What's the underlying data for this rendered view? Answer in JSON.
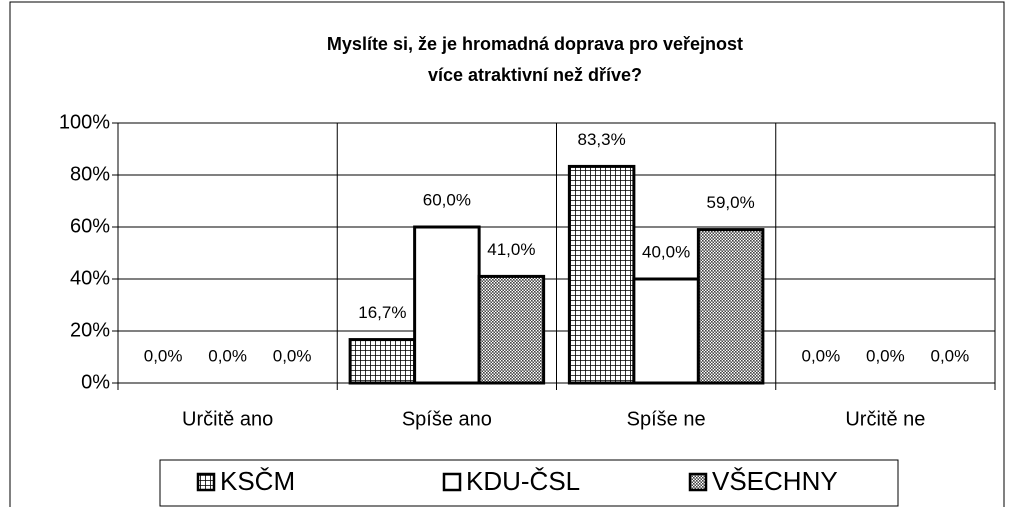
{
  "chart_data": {
    "type": "bar",
    "title": [
      "Myslíte si, že je hromadná doprava pro veřejnost",
      "více atraktivní než dříve?"
    ],
    "categories": [
      "Určitě ano",
      "Spíše ano",
      "Spíše ne",
      "Určitě ne"
    ],
    "series": [
      {
        "name": "KSČM",
        "color": "#ffffff",
        "pattern": "grid",
        "values": [
          0,
          16.7,
          83.3,
          0
        ],
        "value_labels": [
          "0,0%",
          "16,7%",
          "83,3%",
          "0,0%"
        ]
      },
      {
        "name": "KDU-ČSL",
        "color": "#ffffff",
        "pattern": "none",
        "values": [
          0,
          60,
          40,
          0
        ],
        "value_labels": [
          "0,0%",
          "60,0%",
          "40,0%",
          "0,0%"
        ]
      },
      {
        "name": "VŠECHNY",
        "color": "#ffffff",
        "pattern": "dots",
        "values": [
          0,
          41,
          59,
          0
        ],
        "value_labels": [
          "0,0%",
          "41,0%",
          "59,0%",
          "0,0%"
        ]
      }
    ],
    "ylim": [
      0,
      100
    ],
    "yticks": [
      {
        "value": 0,
        "label": "0%"
      },
      {
        "value": 20,
        "label": "20%"
      },
      {
        "value": 40,
        "label": "40%"
      },
      {
        "value": 60,
        "label": "60%"
      },
      {
        "value": 80,
        "label": "80%"
      },
      {
        "value": 100,
        "label": "100%"
      }
    ],
    "grid": true,
    "legend": "bottom"
  }
}
